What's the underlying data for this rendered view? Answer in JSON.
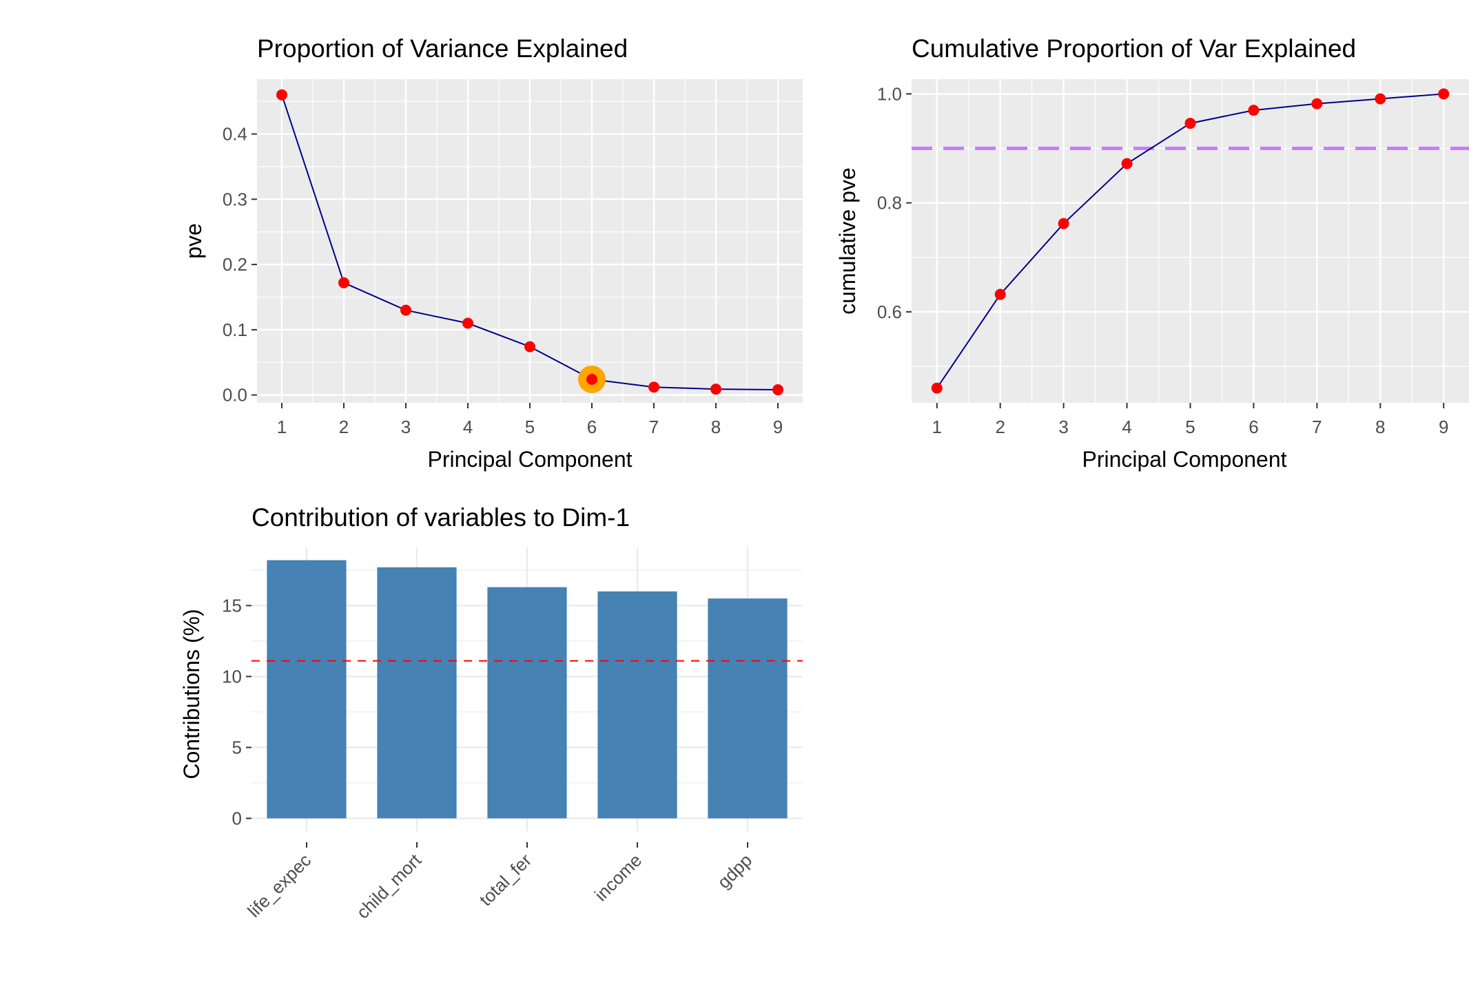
{
  "chart_data": [
    {
      "type": "line",
      "title": "Proportion of Variance Explained",
      "xlabel": "Principal Component",
      "ylabel": "pve",
      "x": [
        1,
        2,
        3,
        4,
        5,
        6,
        7,
        8,
        9
      ],
      "y": [
        0.46,
        0.172,
        0.13,
        0.11,
        0.074,
        0.024,
        0.012,
        0.009,
        0.008
      ],
      "xticks": [
        "1",
        "2",
        "3",
        "4",
        "5",
        "6",
        "7",
        "8",
        "9"
      ],
      "yticks": [
        "0.0",
        "0.1",
        "0.2",
        "0.3",
        "0.4"
      ],
      "ytick_values": [
        0,
        0.1,
        0.2,
        0.3,
        0.4
      ],
      "xlim": [
        0.6,
        9.4
      ],
      "ylim": [
        -0.012,
        0.484
      ],
      "highlight_x": 6,
      "colors": {
        "line": "#00008b",
        "point": "#ff0000",
        "highlight": "#ffa500",
        "panel": "#ebebeb"
      },
      "grid": true
    },
    {
      "type": "line",
      "title": "Cumulative Proportion of Var Explained",
      "xlabel": "Principal Component",
      "ylabel": "cumulative pve",
      "x": [
        1,
        2,
        3,
        4,
        5,
        6,
        7,
        8,
        9
      ],
      "y": [
        0.46,
        0.632,
        0.762,
        0.872,
        0.946,
        0.97,
        0.982,
        0.991,
        1.0
      ],
      "xticks": [
        "1",
        "2",
        "3",
        "4",
        "5",
        "6",
        "7",
        "8",
        "9"
      ],
      "yticks": [
        "0.6",
        "0.8",
        "1.0"
      ],
      "ytick_values": [
        0.6,
        0.8,
        1.0
      ],
      "xlim": [
        0.6,
        9.4
      ],
      "ylim": [
        0.433,
        1.027
      ],
      "reference_line": 0.9,
      "colors": {
        "line": "#00008b",
        "point": "#ff0000",
        "reference": "#c77cff",
        "panel": "#ebebeb"
      },
      "grid": true
    },
    {
      "type": "bar",
      "title": "Contribution of variables to Dim-1",
      "xlabel": "",
      "ylabel": "Contributions (%)",
      "categories": [
        "life_expec",
        "child_mort",
        "total_fer",
        "income",
        "gdpp"
      ],
      "values": [
        18.2,
        17.7,
        16.3,
        16.0,
        15.5
      ],
      "yticks": [
        "0",
        "5",
        "10",
        "15"
      ],
      "ytick_values": [
        0,
        5,
        10,
        15
      ],
      "ylim": [
        -0.9,
        19.1
      ],
      "reference_line": 11.1,
      "colors": {
        "bar": "#4682b4",
        "reference": "#ff0000",
        "grid": "#ebebeb"
      },
      "grid": true
    }
  ]
}
